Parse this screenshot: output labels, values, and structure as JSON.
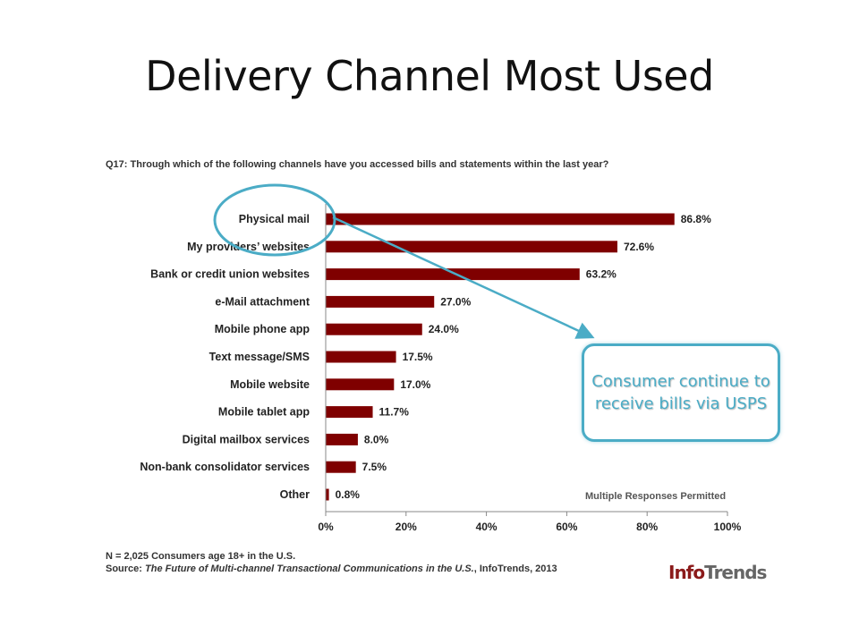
{
  "slide": {
    "title": "Delivery Channel Most Used"
  },
  "chart_data": {
    "type": "bar",
    "orientation": "horizontal",
    "question": "Q17: Through which of the following channels have you accessed bills and statements within the last year?",
    "categories": [
      "Physical mail",
      "My providers’ websites",
      "Bank or credit union websites",
      "e-Mail attachment",
      "Mobile phone app",
      "Text message/SMS",
      "Mobile website",
      "Mobile tablet app",
      "Digital mailbox services",
      "Non-bank consolidator services",
      "Other"
    ],
    "values": [
      86.8,
      72.6,
      63.2,
      27.0,
      24.0,
      17.5,
      17.0,
      11.7,
      8.0,
      7.5,
      0.8
    ],
    "value_labels": [
      "86.8%",
      "72.6%",
      "63.2%",
      "27.0%",
      "24.0%",
      "17.5%",
      "17.0%",
      "11.7%",
      "8.0%",
      "7.5%",
      "0.8%"
    ],
    "xlim": [
      0,
      100
    ],
    "x_ticks": [
      "0%",
      "20%",
      "40%",
      "60%",
      "80%",
      "100%"
    ],
    "bar_color": "#7f0000",
    "grid": false,
    "note": "Multiple Responses Permitted"
  },
  "footnote": {
    "sample": "N = 2,025 Consumers age 18+ in the U.S.",
    "source_prefix": "Source: ",
    "source_title": "The Future of Multi-channel Transactional Communications in the U.S.",
    "source_suffix": ", InfoTrends, 2013"
  },
  "callout": {
    "text": "Consumer continue to receive bills via USPS",
    "color": "#4bacc6"
  },
  "logo": {
    "part1": "Info",
    "part2": "Trends"
  }
}
